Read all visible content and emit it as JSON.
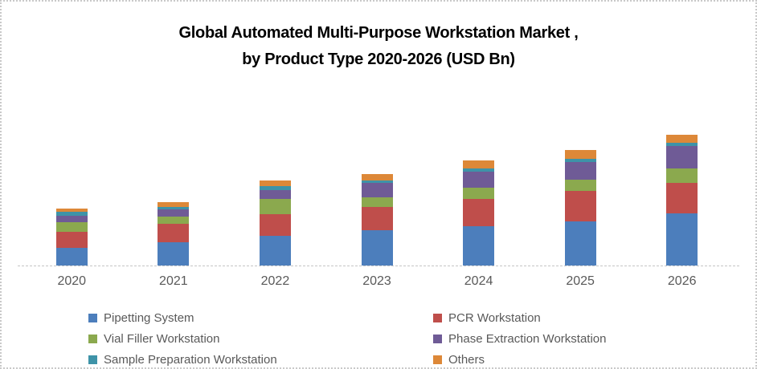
{
  "header": {
    "title_line1": "Global Automated Multi-Purpose Workstation Market ,",
    "title_line2": "by Product Type 2020-2026 (USD Bn)"
  },
  "colors": {
    "frame_border": "#C9C9C9",
    "axis_line": "#C4C4C4",
    "axis_text": "#595959",
    "legend_text": "#595959",
    "title_text": "#000000"
  },
  "chart_data": {
    "type": "bar",
    "stacked": true,
    "title": "Global Automated Multi-Purpose Workstation Market , by Product Type 2020-2026 (USD Bn)",
    "xlabel": "",
    "ylabel": "",
    "value_unit": "USD Bn (y-axis unlabeled; segment values are estimates in relative chart units)",
    "categories": [
      "2020",
      "2021",
      "2022",
      "2023",
      "2024",
      "2025",
      "2026"
    ],
    "series": [
      {
        "name": "Pipetting System",
        "color": "#4C7EBC",
        "values": [
          22,
          29,
          37,
          44.5,
          49,
          55,
          65
        ]
      },
      {
        "name": "PCR Workstation",
        "color": "#BF4E4B",
        "values": [
          20,
          23,
          27.5,
          29,
          34.5,
          38.5,
          38.5
        ]
      },
      {
        "name": "Vial Filler Workstation",
        "color": "#8BA94E",
        "values": [
          12.5,
          9,
          18.5,
          12,
          13.5,
          14,
          17.5
        ]
      },
      {
        "name": "Phase Extraction Workstation",
        "color": "#6F5B96",
        "values": [
          8,
          9,
          11.5,
          17.5,
          20.5,
          21.5,
          28.5
        ]
      },
      {
        "name": "Sample Preparation Workstation",
        "color": "#3E93A8",
        "values": [
          4.5,
          3,
          4.5,
          3.5,
          4,
          4,
          3.5
        ]
      },
      {
        "name": "Others",
        "color": "#DD8838",
        "values": [
          4.5,
          6,
          7.5,
          7.5,
          10,
          11.5,
          10.5
        ]
      }
    ],
    "totals": [
      71.5,
      79,
      106.5,
      114,
      131.5,
      144.5,
      163.5
    ],
    "ylim": [
      0,
      180
    ],
    "grid": false,
    "y_axis_visible": false,
    "legend_position": "bottom-left, two columns, three rows"
  }
}
